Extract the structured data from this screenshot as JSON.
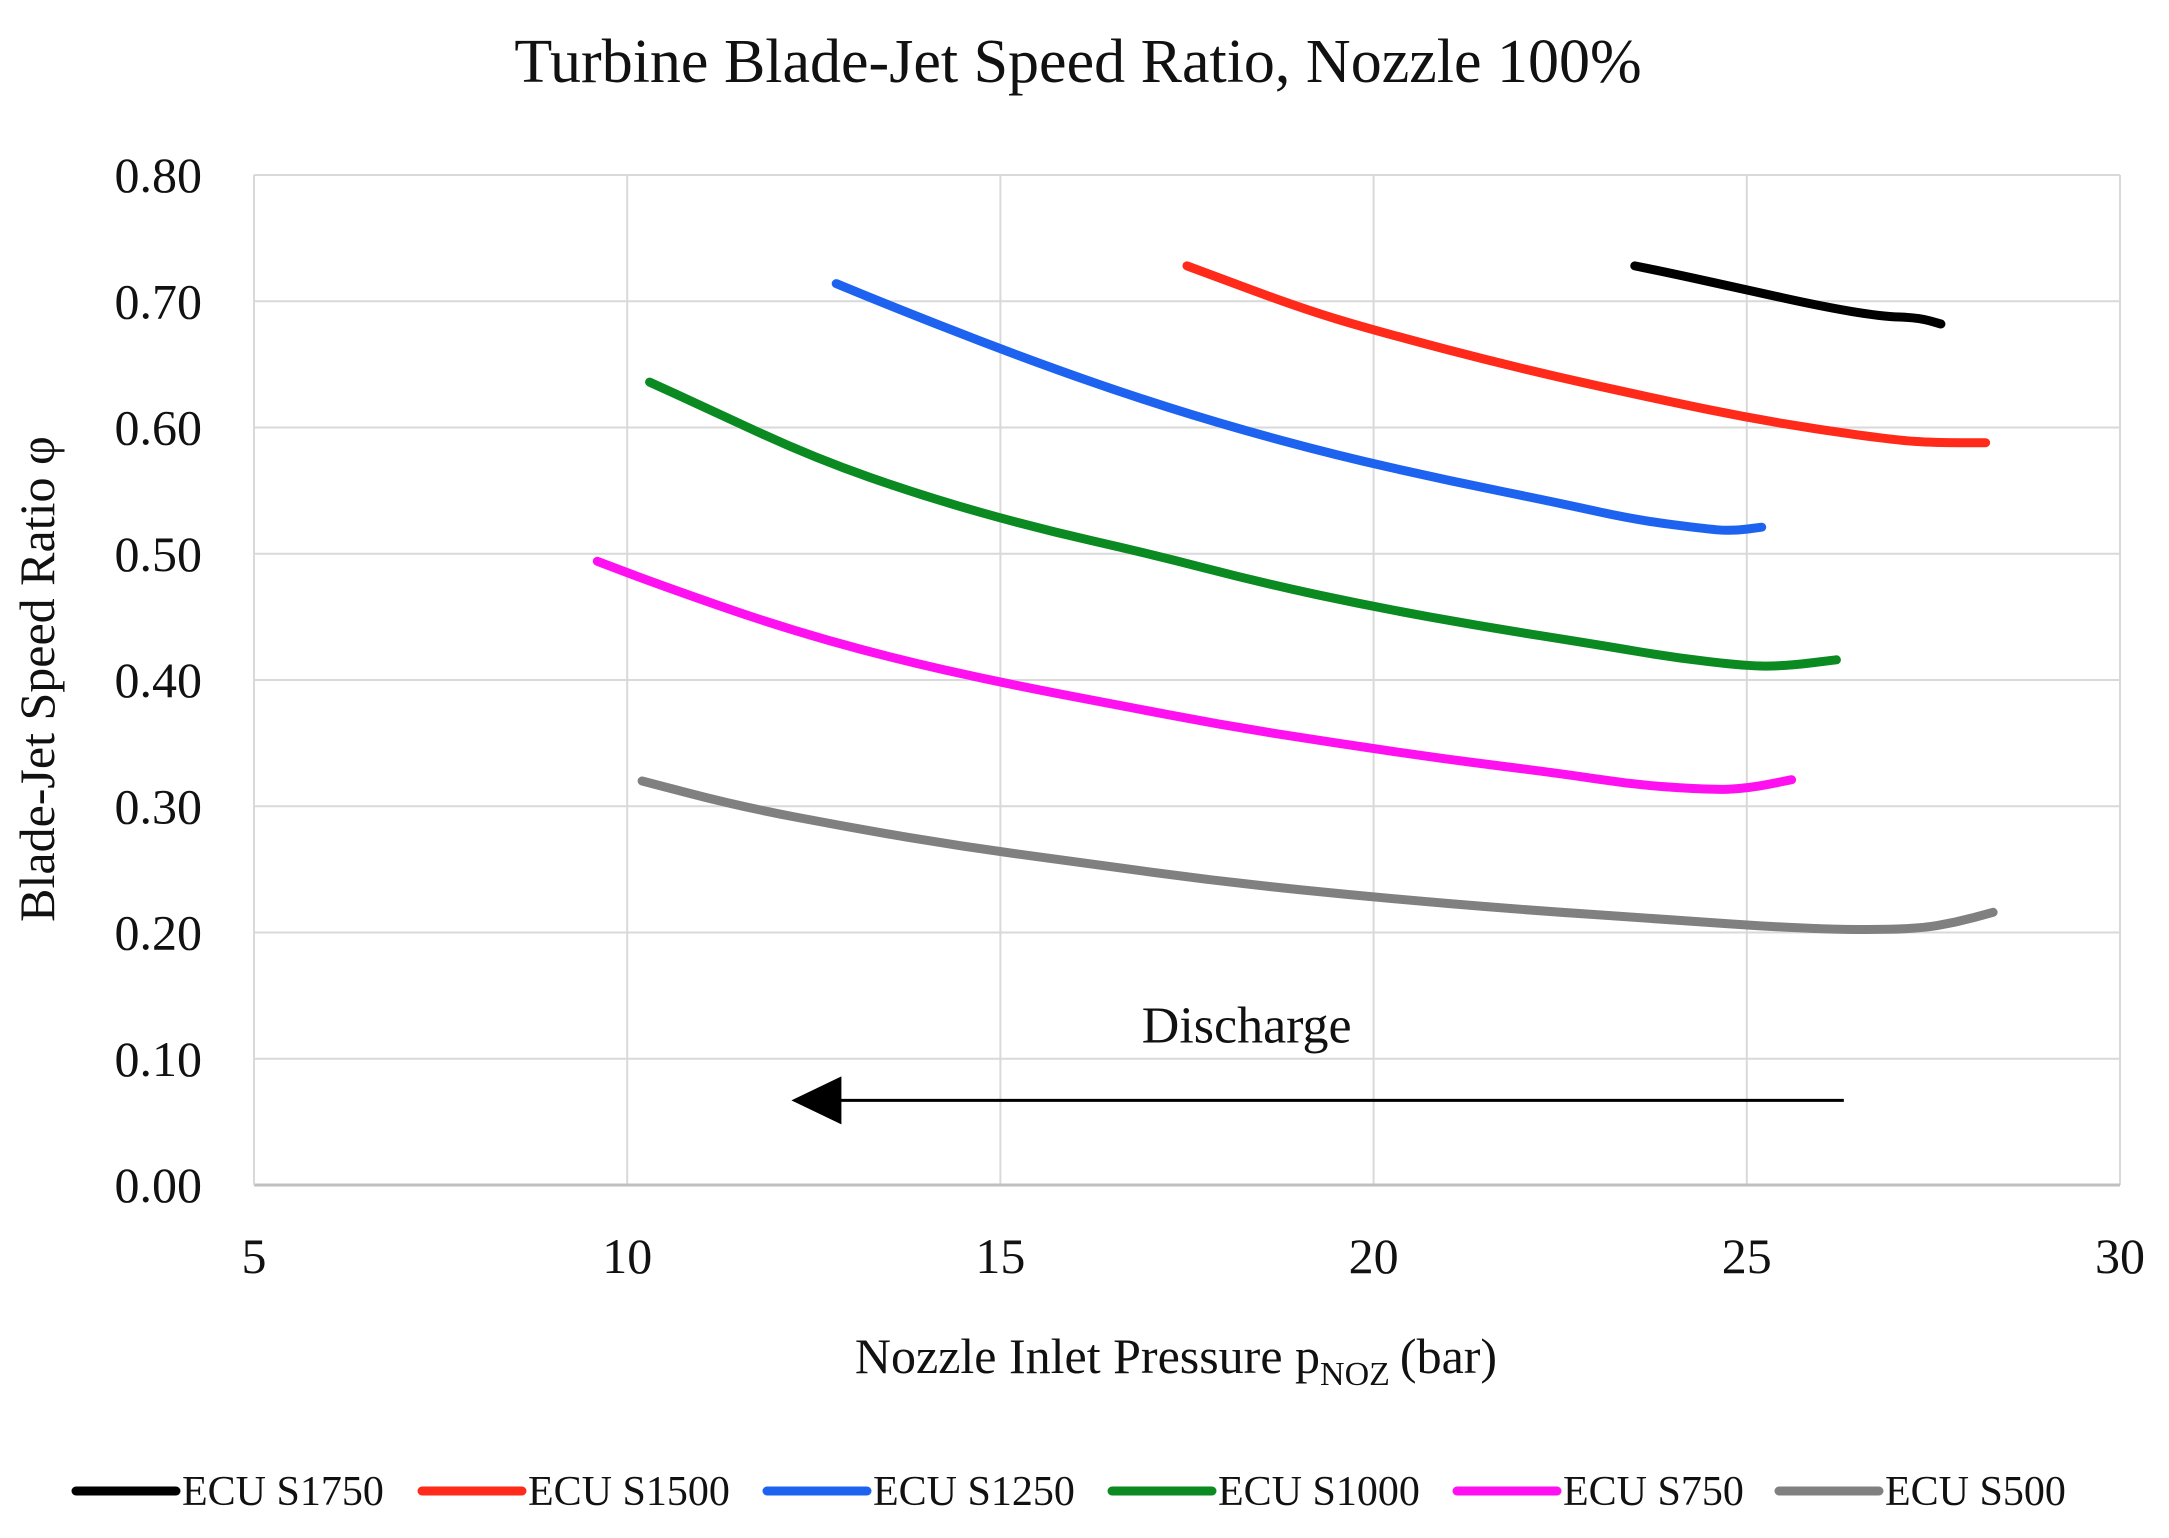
{
  "chart_data": {
    "type": "line",
    "title": "Turbine Blade-Jet Speed Ratio, Nozzle 100%",
    "xlabel": {
      "main": "Nozzle Inlet Pressure p",
      "subscript": "NOZ",
      "unit": "(bar)"
    },
    "ylabel": "Blade-Jet Speed Ratio φ",
    "xlim": [
      5,
      30
    ],
    "ylim": [
      0,
      0.8
    ],
    "x_ticks": [
      5,
      10,
      15,
      20,
      25,
      30
    ],
    "x_tick_labels": [
      "5",
      "10",
      "15",
      "20",
      "25",
      "30"
    ],
    "y_ticks": [
      0,
      0.1,
      0.2,
      0.3,
      0.4,
      0.5,
      0.6,
      0.7,
      0.8
    ],
    "y_tick_labels": [
      "0.00",
      "0.10",
      "0.20",
      "0.30",
      "0.40",
      "0.50",
      "0.60",
      "0.70",
      "0.80"
    ],
    "grid": true,
    "legend_position": "bottom",
    "annotation": {
      "text": "Discharge",
      "arrow_from_x": 26.3,
      "arrow_to_x": 12.2,
      "arrow_y": 0.067,
      "text_x": 18.3,
      "text_y": 0.113
    },
    "series": [
      {
        "name": "ECU S1750",
        "color": "#000000",
        "points": [
          [
            23.5,
            0.728
          ],
          [
            24.0,
            0.722
          ],
          [
            25.0,
            0.709
          ],
          [
            26.0,
            0.696
          ],
          [
            26.8,
            0.688
          ],
          [
            27.3,
            0.687
          ],
          [
            27.6,
            0.682
          ]
        ]
      },
      {
        "name": "ECU S1500",
        "color": "#ff2a1a",
        "points": [
          [
            17.5,
            0.728
          ],
          [
            19.0,
            0.695
          ],
          [
            20.0,
            0.677
          ],
          [
            22.0,
            0.646
          ],
          [
            24.0,
            0.62
          ],
          [
            25.0,
            0.608
          ],
          [
            26.0,
            0.598
          ],
          [
            27.0,
            0.59
          ],
          [
            27.5,
            0.588
          ],
          [
            28.2,
            0.588
          ]
        ]
      },
      {
        "name": "ECU S1250",
        "color": "#1e63f0",
        "points": [
          [
            12.8,
            0.714
          ],
          [
            13.5,
            0.697
          ],
          [
            15.0,
            0.662
          ],
          [
            16.5,
            0.63
          ],
          [
            18.0,
            0.602
          ],
          [
            19.5,
            0.578
          ],
          [
            21.0,
            0.558
          ],
          [
            22.5,
            0.54
          ],
          [
            23.5,
            0.527
          ],
          [
            24.4,
            0.52
          ],
          [
            24.8,
            0.518
          ],
          [
            25.2,
            0.521
          ]
        ]
      },
      {
        "name": "ECU S1000",
        "color": "#0a8a20",
        "points": [
          [
            10.3,
            0.636
          ],
          [
            11.0,
            0.617
          ],
          [
            12.5,
            0.576
          ],
          [
            14.0,
            0.545
          ],
          [
            15.5,
            0.52
          ],
          [
            17.0,
            0.5
          ],
          [
            18.5,
            0.477
          ],
          [
            20.0,
            0.458
          ],
          [
            21.5,
            0.442
          ],
          [
            23.0,
            0.428
          ],
          [
            24.0,
            0.418
          ],
          [
            25.0,
            0.411
          ],
          [
            25.5,
            0.411
          ],
          [
            26.2,
            0.416
          ]
        ]
      },
      {
        "name": "ECU S750",
        "color": "#ff10f0",
        "points": [
          [
            9.6,
            0.494
          ],
          [
            10.5,
            0.474
          ],
          [
            12.0,
            0.443
          ],
          [
            13.5,
            0.418
          ],
          [
            15.0,
            0.398
          ],
          [
            16.5,
            0.381
          ],
          [
            18.0,
            0.364
          ],
          [
            19.5,
            0.35
          ],
          [
            21.0,
            0.337
          ],
          [
            22.5,
            0.326
          ],
          [
            23.5,
            0.317
          ],
          [
            24.5,
            0.313
          ],
          [
            25.0,
            0.314
          ],
          [
            25.6,
            0.321
          ]
        ]
      },
      {
        "name": "ECU S500",
        "color": "#808080",
        "points": [
          [
            10.2,
            0.32
          ],
          [
            11.5,
            0.3
          ],
          [
            13.0,
            0.283
          ],
          [
            14.5,
            0.268
          ],
          [
            16.0,
            0.256
          ],
          [
            18.0,
            0.24
          ],
          [
            20.0,
            0.228
          ],
          [
            22.0,
            0.218
          ],
          [
            24.0,
            0.21
          ],
          [
            25.5,
            0.204
          ],
          [
            26.5,
            0.202
          ],
          [
            27.3,
            0.203
          ],
          [
            27.8,
            0.208
          ],
          [
            28.3,
            0.216
          ]
        ]
      }
    ]
  }
}
